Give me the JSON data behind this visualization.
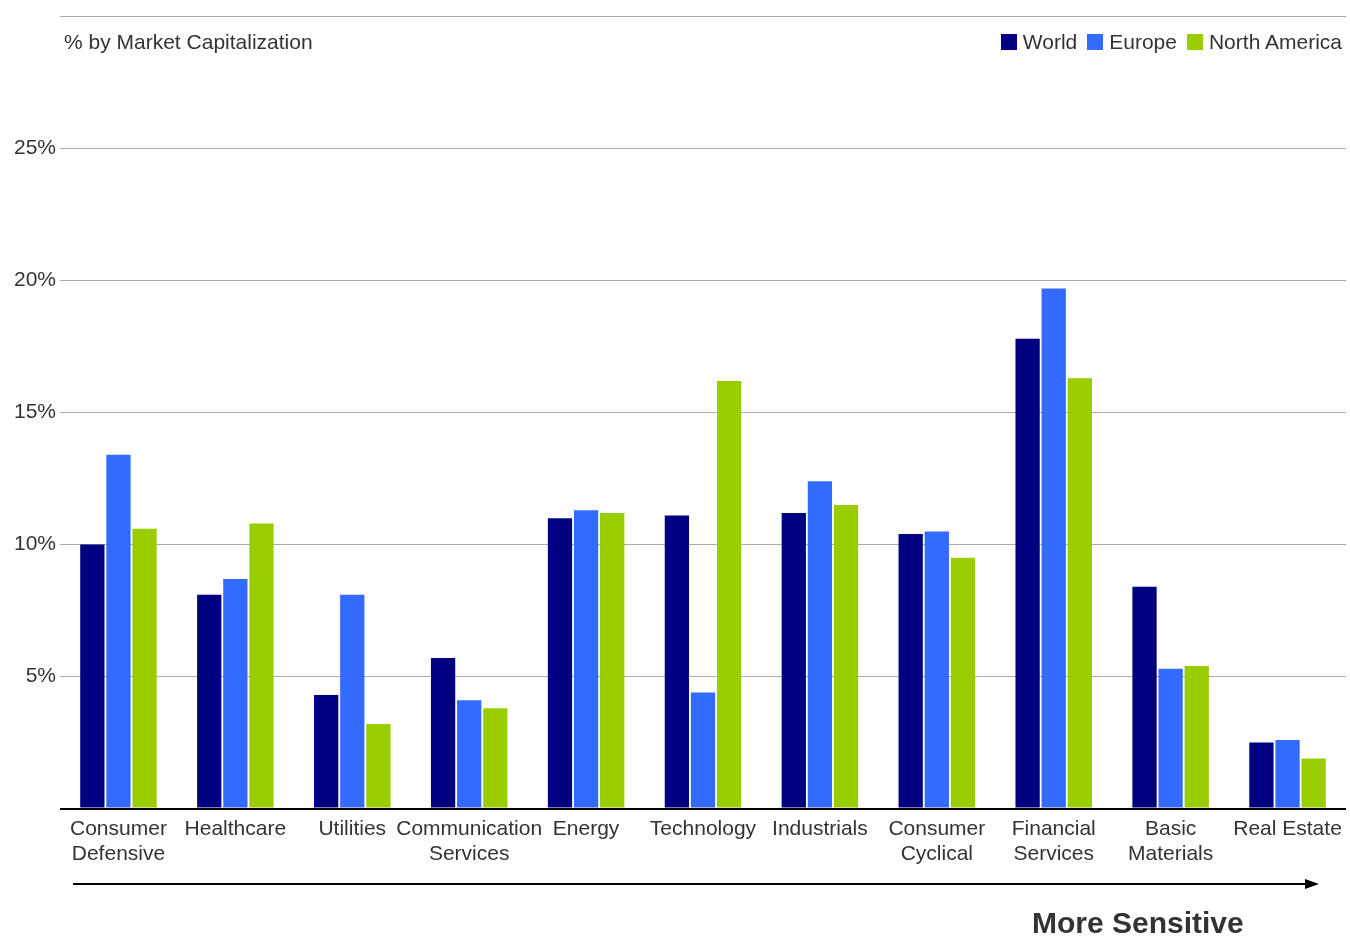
{
  "chart_data": {
    "type": "bar",
    "ylabel": "% by Market Capitalization",
    "categories": [
      "Consumer Defensive",
      "Healthcare",
      "Utilities",
      "Communication Services",
      "Energy",
      "Technology",
      "Industrials",
      "Consumer Cyclical",
      "Financial Services",
      "Basic Materials",
      "Real Estate"
    ],
    "series": [
      {
        "name": "World",
        "color": "#000080",
        "values": [
          10.0,
          8.1,
          4.3,
          5.7,
          11.0,
          11.1,
          11.2,
          10.4,
          17.8,
          8.4,
          2.5
        ]
      },
      {
        "name": "Europe",
        "color": "#336bff",
        "values": [
          13.4,
          8.7,
          8.1,
          4.1,
          11.3,
          4.4,
          12.4,
          10.5,
          19.7,
          5.3,
          2.6
        ]
      },
      {
        "name": "North America",
        "color": "#9acd00",
        "values": [
          10.6,
          10.8,
          3.2,
          3.8,
          11.2,
          16.2,
          11.5,
          9.5,
          16.3,
          5.4,
          1.9
        ]
      }
    ],
    "ylim": [
      0,
      30
    ],
    "yticks": [
      {
        "value": 0,
        "label": null
      },
      {
        "value": 5,
        "label": "5%"
      },
      {
        "value": 10,
        "label": "10%"
      },
      {
        "value": 15,
        "label": "15%"
      },
      {
        "value": 20,
        "label": "20%"
      },
      {
        "value": 25,
        "label": "25%"
      },
      {
        "value": 30,
        "label": null
      }
    ],
    "grid": "y",
    "legend": "top right",
    "annotations": [
      "More Sensitive"
    ]
  }
}
